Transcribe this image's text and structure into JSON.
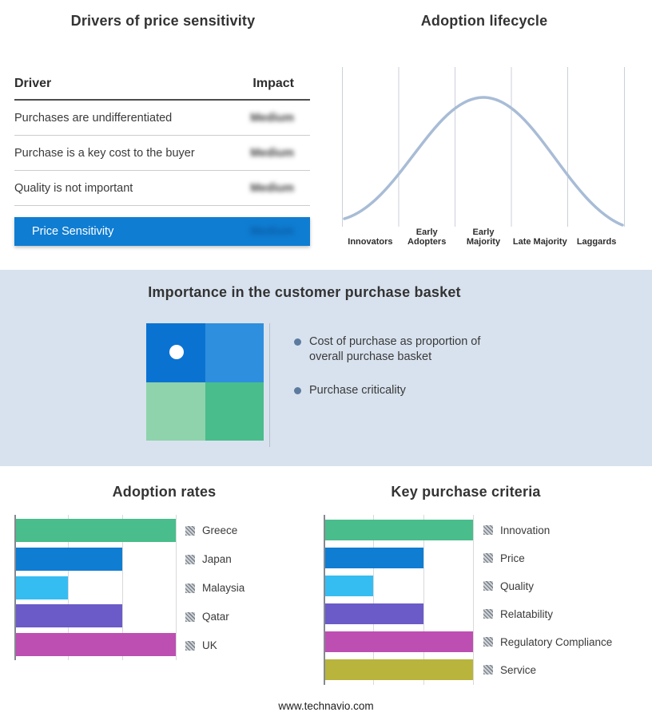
{
  "drivers": {
    "title": "Drivers of price sensitivity",
    "col_driver": "Driver",
    "col_impact": "Impact",
    "rows": [
      {
        "driver": "Purchases are undifferentiated",
        "impact": "Medium"
      },
      {
        "driver": "Purchase is a key cost to the buyer",
        "impact": "Medium"
      },
      {
        "driver": "Quality is not important",
        "impact": "Medium"
      }
    ],
    "summary": {
      "label": "Price Sensitivity",
      "impact": "Medium"
    },
    "summary_color": "#0f7dd2",
    "impact_values_blurred": true
  },
  "basket": {
    "title": "Importance in the customer purchase basket",
    "background": "#d8e2ee",
    "bullets": [
      "Cost of purchase as proportion of overall purchase basket",
      "Purchase criticality"
    ],
    "quadrant_colors": [
      "#0a73d2",
      "#2e8fde",
      "#8fd3ac",
      "#49bd8c"
    ],
    "bullet_color": "#5c7b9e"
  },
  "chart_data": [
    {
      "id": "adoption-lifecycle",
      "type": "line",
      "title": "Adoption lifecycle",
      "categories": [
        "Innovators",
        "Early Adopters",
        "Early Majority",
        "Late Majority",
        "Laggards"
      ],
      "values": [
        0.05,
        0.5,
        1.0,
        0.5,
        0.05
      ],
      "shape": "bell-curve",
      "color": "#a8bcd6",
      "grid": "vertical-separators"
    },
    {
      "id": "adoption-rates",
      "type": "bar",
      "orientation": "horizontal",
      "title": "Adoption rates",
      "categories": [
        "Greece",
        "Japan",
        "Malaysia",
        "Qatar",
        "UK"
      ],
      "values": [
        3,
        2,
        1,
        2,
        3
      ],
      "xlim": [
        0,
        3
      ],
      "gridlines": 3,
      "colors": [
        "#49bd8c",
        "#0f7dd2",
        "#35bdf2",
        "#6a5bc8",
        "#bd4fb2"
      ],
      "legend_position": "right"
    },
    {
      "id": "key-purchase-criteria",
      "type": "bar",
      "orientation": "horizontal",
      "title": "Key purchase criteria",
      "categories": [
        "Innovation",
        "Price",
        "Quality",
        "Relatability",
        "Regulatory Compliance",
        "Service"
      ],
      "values": [
        3,
        2,
        1,
        2,
        3,
        3
      ],
      "xlim": [
        0,
        3
      ],
      "gridlines": 3,
      "colors": [
        "#49bd8c",
        "#0f7dd2",
        "#35bdf2",
        "#6a5bc8",
        "#bd4fb2",
        "#b8b43c"
      ],
      "legend_position": "right"
    }
  ],
  "icons": {
    "legend_marker": "hatch-swatch",
    "bullet": "dot",
    "matrix_marker": "white-dot"
  },
  "footer": {
    "site": "www.technavio.com"
  }
}
